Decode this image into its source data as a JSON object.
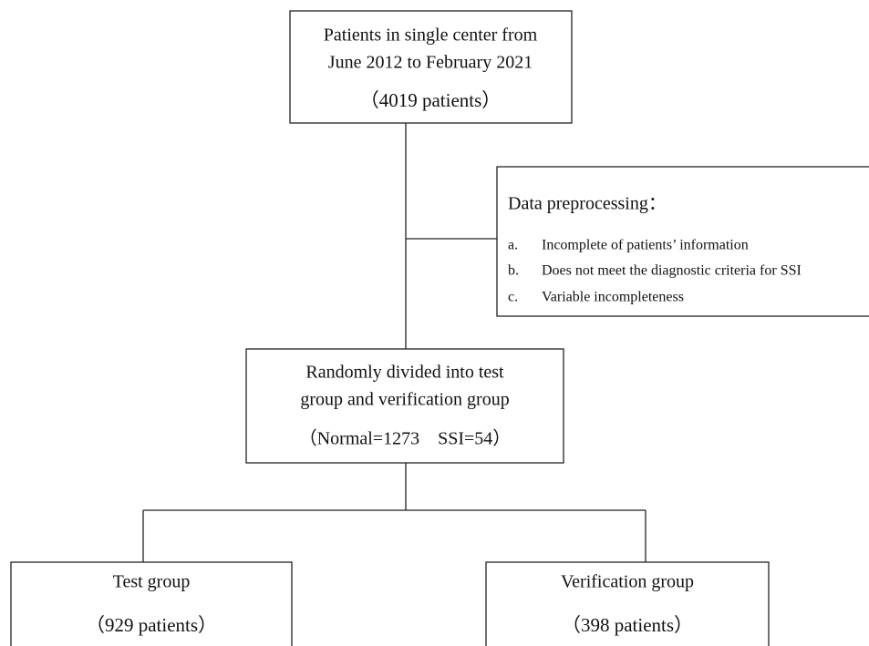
{
  "nodes": [
    {
      "lines": [
        "Patients in single center from",
        "June 2012 to February 2021"
      ],
      "count": "（4019 patients）"
    },
    {
      "lines": [
        "Randomly divided into test",
        "group and verification group"
      ],
      "count": "（Normal=1273    SSI=54）"
    },
    {
      "lines": [
        "Test group"
      ],
      "count": "（929 patients）"
    },
    {
      "lines": [
        "Verification group"
      ],
      "count": "（398 patients）"
    }
  ],
  "exclusion": {
    "title": "Data preprocessing：",
    "items": [
      {
        "marker": "a.",
        "text": "Incomplete of patients’ information"
      },
      {
        "marker": "b.",
        "text": "Does not meet the diagnostic criteria for SSI"
      },
      {
        "marker": "c.",
        "text": "Variable incompleteness"
      }
    ]
  }
}
